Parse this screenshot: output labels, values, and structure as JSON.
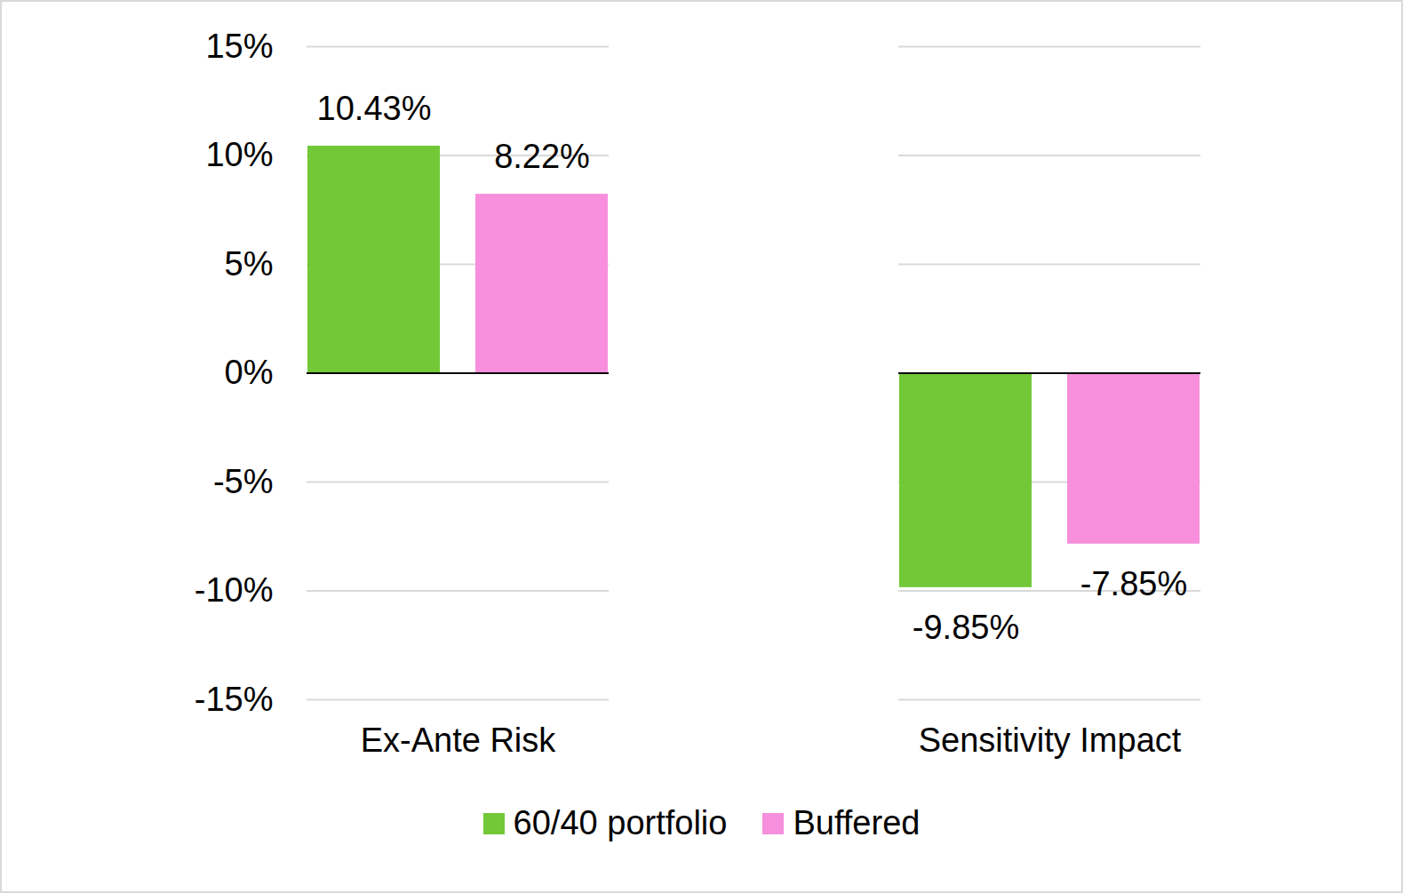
{
  "chart_data": {
    "type": "bar",
    "categories": [
      "Ex-Ante Risk",
      "Sensitivity Impact"
    ],
    "series": [
      {
        "name": "60/40 portfolio",
        "color": "#72c837",
        "values": [
          10.43,
          -9.85
        ],
        "value_labels": [
          "10.43%",
          "-9.85%"
        ]
      },
      {
        "name": "Buffered",
        "color": "#f78fdc",
        "values": [
          8.22,
          -7.85
        ],
        "value_labels": [
          "8.22%",
          "-7.85%"
        ]
      }
    ],
    "ylim": [
      -15,
      15
    ],
    "yticks": [
      {
        "value": -15,
        "label": "-15%"
      },
      {
        "value": -10,
        "label": "-10%"
      },
      {
        "value": -5,
        "label": "-5%"
      },
      {
        "value": 0,
        "label": "0%"
      },
      {
        "value": 5,
        "label": "5%"
      },
      {
        "value": 10,
        "label": "10%"
      },
      {
        "value": 15,
        "label": "15%"
      }
    ],
    "grid": true,
    "data_labels": true,
    "legend": "bottom"
  }
}
